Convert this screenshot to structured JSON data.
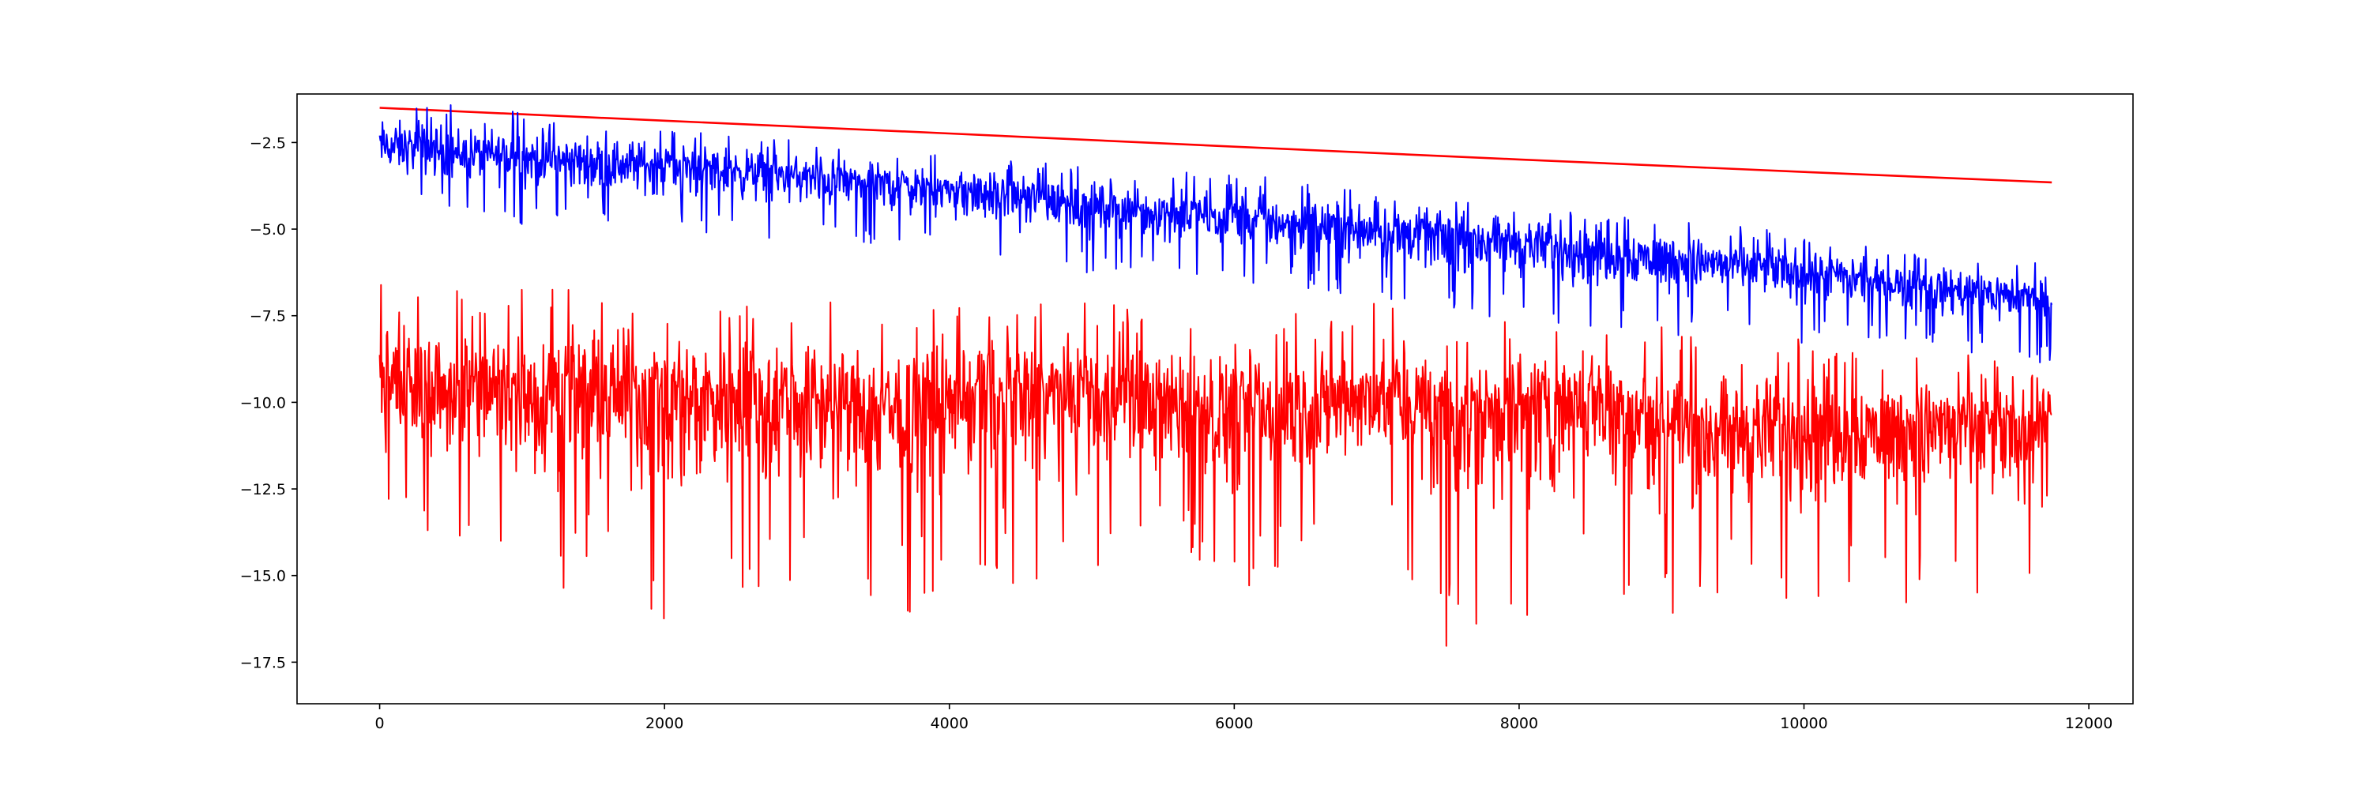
{
  "chart_data": {
    "type": "line",
    "title": "",
    "xlabel": "",
    "ylabel": "",
    "xlim": [
      -580,
      12310
    ],
    "ylim": [
      -18.7,
      -1.1
    ],
    "grid": false,
    "legend": "none",
    "x_ticks": [
      {
        "value": 0,
        "label": "0"
      },
      {
        "value": 2000,
        "label": "2000"
      },
      {
        "value": 4000,
        "label": "4000"
      },
      {
        "value": 6000,
        "label": "6000"
      },
      {
        "value": 8000,
        "label": "8000"
      },
      {
        "value": 10000,
        "label": "10000"
      },
      {
        "value": 12000,
        "label": "12000"
      }
    ],
    "y_ticks": [
      {
        "value": -2.5,
        "label": "−2.5"
      },
      {
        "value": -5.0,
        "label": "−5.0"
      },
      {
        "value": -7.5,
        "label": "−7.5"
      },
      {
        "value": -10.0,
        "label": "−10.0"
      },
      {
        "value": -12.5,
        "label": "−12.5"
      },
      {
        "value": -15.0,
        "label": "−15.0"
      },
      {
        "value": -17.5,
        "label": "−17.5"
      }
    ],
    "series": [
      {
        "color": "#ff0000",
        "style": "smooth",
        "x": [
          0,
          2000,
          4000,
          6000,
          8000,
          10000,
          11740
        ],
        "y": [
          -1.5,
          -1.87,
          -2.24,
          -2.62,
          -2.99,
          -3.35,
          -3.65
        ]
      },
      {
        "color": "#0000ff",
        "style": "noisy",
        "x": [
          0,
          500,
          1000,
          1500,
          2000,
          2500,
          3000,
          3500,
          4000,
          4500,
          5000,
          5500,
          6000,
          6500,
          7000,
          7500,
          8000,
          8500,
          9000,
          9500,
          10000,
          10500,
          11000,
          11500,
          11740
        ],
        "y": [
          -2.6,
          -2.8,
          -2.95,
          -3.05,
          -3.15,
          -3.3,
          -3.5,
          -3.65,
          -3.85,
          -4.05,
          -4.3,
          -4.5,
          -4.7,
          -4.85,
          -5.0,
          -5.2,
          -5.4,
          -5.6,
          -5.8,
          -6.0,
          -6.25,
          -6.5,
          -6.7,
          -6.9,
          -7.05
        ],
        "min": [
          -4.2,
          -4.5,
          -4.9,
          -5.1,
          -5.1,
          -5.2,
          -5.4,
          -5.6,
          -5.8,
          -6.0,
          -6.3,
          -6.2,
          -6.5,
          -6.8,
          -7.0,
          -7.5,
          -7.7,
          -7.9,
          -8.1,
          -8.0,
          -8.3,
          -8.2,
          -8.5,
          -8.8,
          -8.9
        ],
        "max": [
          -1.3,
          -1.4,
          -1.5,
          -1.9,
          -1.9,
          -2.2,
          -2.5,
          -2.7,
          -2.9,
          -3.0,
          -3.2,
          -3.3,
          -3.4,
          -3.6,
          -3.9,
          -4.0,
          -4.2,
          -4.6,
          -4.6,
          -4.9,
          -5.1,
          -5.5,
          -5.7,
          -5.9,
          -6.0
        ]
      },
      {
        "color": "#ff0000",
        "style": "noisy",
        "x": [
          0,
          500,
          1000,
          1500,
          2000,
          2500,
          3000,
          3500,
          4000,
          4500,
          5000,
          5500,
          6000,
          6500,
          7000,
          7500,
          8000,
          8500,
          9000,
          9500,
          10000,
          10500,
          11000,
          11500,
          11740
        ],
        "y": [
          -9.3,
          -9.7,
          -9.6,
          -9.6,
          -9.7,
          -9.9,
          -9.9,
          -10.1,
          -9.9,
          -9.7,
          -9.8,
          -10.0,
          -10.1,
          -10.3,
          -9.8,
          -10.1,
          -10.0,
          -9.6,
          -10.6,
          -10.9,
          -10.6,
          -10.7,
          -10.5,
          -10.8,
          -10.2
        ],
        "min": [
          -14.3,
          -14.2,
          -16.2,
          -15.0,
          -16.8,
          -15.5,
          -15.2,
          -16.8,
          -15.3,
          -15.7,
          -14.8,
          -14.1,
          -15.8,
          -14.5,
          -13.5,
          -17.3,
          -17.6,
          -14.8,
          -16.4,
          -15.5,
          -16.0,
          -15.2,
          -16.6,
          -16.2,
          -12.6
        ],
        "max": [
          -6.5,
          -6.7,
          -6.6,
          -6.8,
          -6.9,
          -6.9,
          -7.0,
          -7.2,
          -7.3,
          -7.1,
          -7.0,
          -7.6,
          -7.6,
          -7.4,
          -7.1,
          -7.8,
          -7.6,
          -7.9,
          -7.8,
          -8.2,
          -8.1,
          -8.6,
          -8.5,
          -8.9,
          -9.0
        ]
      }
    ]
  }
}
